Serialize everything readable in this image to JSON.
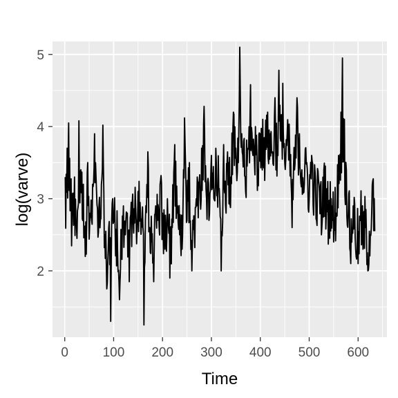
{
  "chart_data": {
    "type": "line",
    "xlabel": "Time",
    "ylabel": "log(varve)",
    "xlim": [
      -25,
      659
    ],
    "ylim": [
      1.08,
      5.18
    ],
    "x_ticks": [
      0,
      100,
      200,
      300,
      400,
      500,
      600
    ],
    "y_ticks": [
      2,
      3,
      4,
      5
    ],
    "grid": true,
    "panel_background": "#ebebeb",
    "grid_color": "#ffffff",
    "line_color": "#000000",
    "x_start": 1,
    "key_points": [
      [
        1,
        3.3
      ],
      [
        5,
        3.7
      ],
      [
        8,
        4.05
      ],
      [
        12,
        3.2
      ],
      [
        15,
        2.78
      ],
      [
        20,
        3.3
      ],
      [
        25,
        2.45
      ],
      [
        29,
        4.08
      ],
      [
        33,
        3.4
      ],
      [
        38,
        3.2
      ],
      [
        42,
        2.2
      ],
      [
        47,
        3.5
      ],
      [
        52,
        2.8
      ],
      [
        57,
        3.2
      ],
      [
        61,
        3.9
      ],
      [
        64,
        3.3
      ],
      [
        70,
        2.9
      ],
      [
        75,
        3.2
      ],
      [
        78,
        4.02
      ],
      [
        82,
        2.5
      ],
      [
        86,
        1.75
      ],
      [
        90,
        2.6
      ],
      [
        94,
        1.3
      ],
      [
        98,
        3.0
      ],
      [
        103,
        2.6
      ],
      [
        108,
        2.3
      ],
      [
        112,
        1.6
      ],
      [
        116,
        2.4
      ],
      [
        120,
        2.9
      ],
      [
        124,
        2.5
      ],
      [
        128,
        2.8
      ],
      [
        132,
        1.85
      ],
      [
        136,
        2.95
      ],
      [
        140,
        2.7
      ],
      [
        145,
        2.9
      ],
      [
        150,
        3.1
      ],
      [
        155,
        2.8
      ],
      [
        160,
        2.6
      ],
      [
        162,
        1.25
      ],
      [
        165,
        2.7
      ],
      [
        170,
        3.65
      ],
      [
        174,
        2.6
      ],
      [
        178,
        2.4
      ],
      [
        182,
        1.85
      ],
      [
        186,
        2.9
      ],
      [
        190,
        2.7
      ],
      [
        195,
        3.2
      ],
      [
        200,
        2.8
      ],
      [
        205,
        2.3
      ],
      [
        210,
        3.0
      ],
      [
        215,
        1.9
      ],
      [
        220,
        2.6
      ],
      [
        225,
        3.75
      ],
      [
        230,
        2.8
      ],
      [
        235,
        2.5
      ],
      [
        240,
        2.3
      ],
      [
        245,
        4.12
      ],
      [
        250,
        2.7
      ],
      [
        255,
        3.5
      ],
      [
        260,
        2.0
      ],
      [
        265,
        2.6
      ],
      [
        270,
        2.9
      ],
      [
        275,
        3.2
      ],
      [
        280,
        3.7
      ],
      [
        285,
        4.28
      ],
      [
        290,
        3.0
      ],
      [
        295,
        2.7
      ],
      [
        300,
        3.6
      ],
      [
        305,
        3.0
      ],
      [
        310,
        3.5
      ],
      [
        315,
        3.15
      ],
      [
        320,
        2.0
      ],
      [
        325,
        3.75
      ],
      [
        330,
        2.8
      ],
      [
        335,
        3.5
      ],
      [
        340,
        3.3
      ],
      [
        345,
        4.2
      ],
      [
        350,
        3.7
      ],
      [
        355,
        3.5
      ],
      [
        358,
        5.1
      ],
      [
        362,
        3.9
      ],
      [
        366,
        3.8
      ],
      [
        370,
        3.1
      ],
      [
        375,
        3.7
      ],
      [
        380,
        4.58
      ],
      [
        385,
        3.6
      ],
      [
        390,
        4.0
      ],
      [
        395,
        3.4
      ],
      [
        400,
        3.9
      ],
      [
        405,
        4.1
      ],
      [
        410,
        3.7
      ],
      [
        415,
        4.2
      ],
      [
        420,
        3.9
      ],
      [
        425,
        3.65
      ],
      [
        430,
        4.4
      ],
      [
        435,
        3.7
      ],
      [
        438,
        4.78
      ],
      [
        442,
        3.8
      ],
      [
        446,
        4.6
      ],
      [
        450,
        3.5
      ],
      [
        455,
        3.9
      ],
      [
        460,
        3.7
      ],
      [
        465,
        2.6
      ],
      [
        470,
        3.4
      ],
      [
        475,
        4.4
      ],
      [
        480,
        3.9
      ],
      [
        485,
        3.4
      ],
      [
        490,
        3.2
      ],
      [
        495,
        3.5
      ],
      [
        500,
        3.0
      ],
      [
        505,
        3.6
      ],
      [
        510,
        3.1
      ],
      [
        515,
        2.7
      ],
      [
        520,
        3.2
      ],
      [
        525,
        2.5
      ],
      [
        530,
        3.4
      ],
      [
        535,
        2.8
      ],
      [
        540,
        2.6
      ],
      [
        545,
        3.0
      ],
      [
        550,
        2.4
      ],
      [
        555,
        2.8
      ],
      [
        560,
        3.6
      ],
      [
        565,
        4.2
      ],
      [
        568,
        4.95
      ],
      [
        572,
        4.1
      ],
      [
        576,
        3.4
      ],
      [
        580,
        2.8
      ],
      [
        585,
        2.1
      ],
      [
        590,
        2.9
      ],
      [
        595,
        2.3
      ],
      [
        600,
        2.1
      ],
      [
        605,
        2.7
      ],
      [
        610,
        2.3
      ],
      [
        615,
        2.6
      ],
      [
        620,
        2.0
      ],
      [
        625,
        2.5
      ],
      [
        630,
        3.25
      ],
      [
        634,
        2.55
      ]
    ]
  }
}
